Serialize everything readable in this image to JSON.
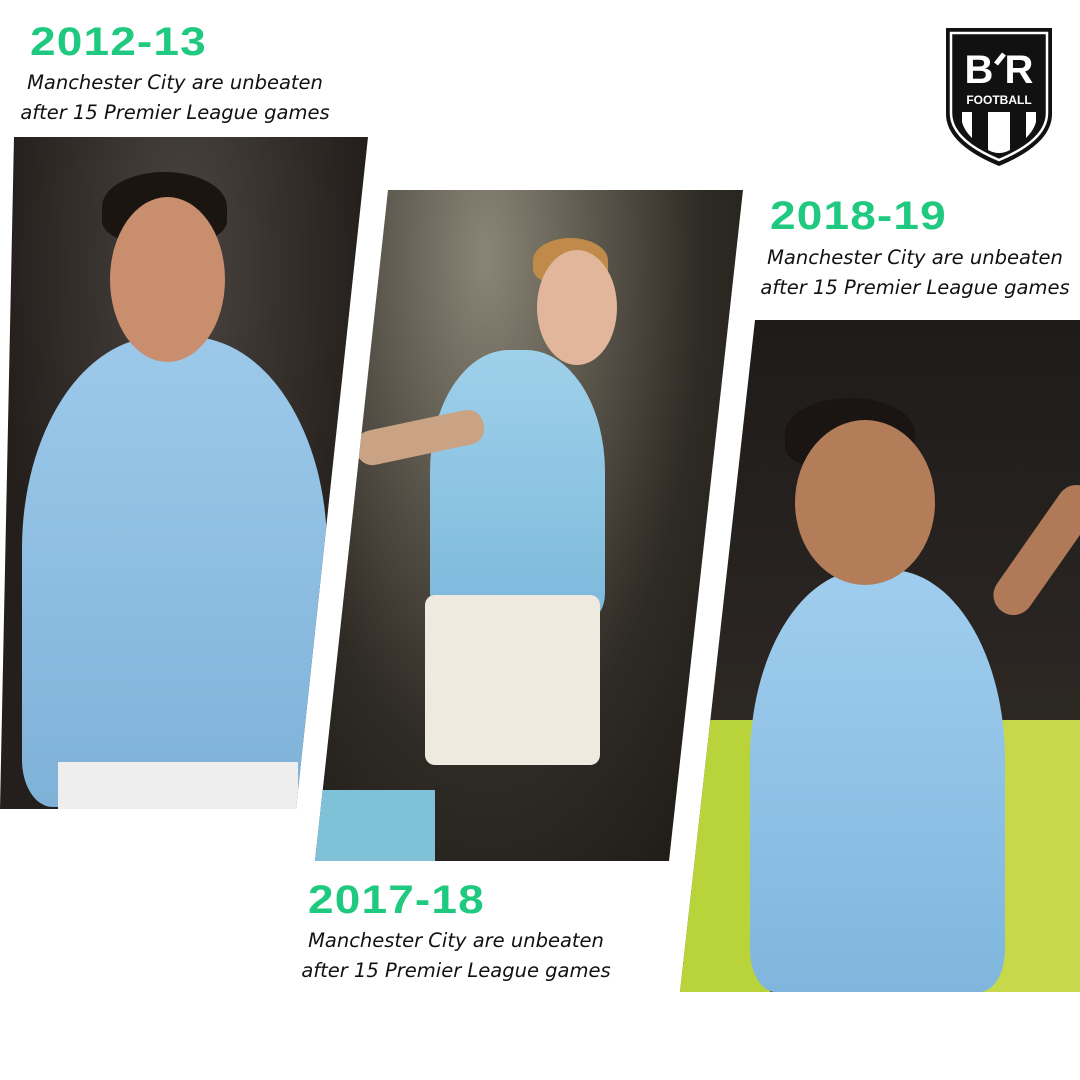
{
  "seasons": [
    {
      "title": "2012-13",
      "line1": "Manchester City are unbeaten",
      "line2": "after 15 Premier League games"
    },
    {
      "title": "2017-18",
      "line1": "Manchester City are unbeaten",
      "line2": "after 15 Premier League games"
    },
    {
      "title": "2018-19",
      "line1": "Manchester City are unbeaten",
      "line2": "after 15 Premier League games"
    }
  ],
  "logo": {
    "text": "B/R",
    "sub": "FOOTBALL"
  },
  "colors": {
    "accent": "#1fc97f",
    "shirt": "#8ec3e6",
    "background": "#ffffff"
  }
}
